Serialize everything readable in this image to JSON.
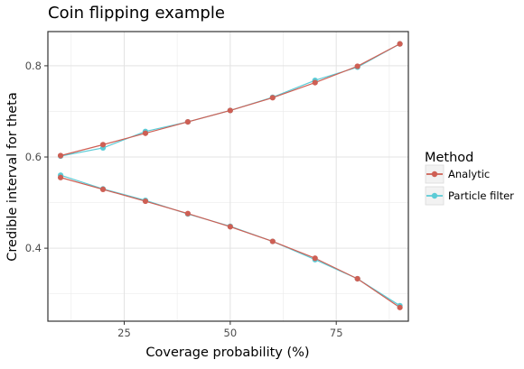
{
  "chart_data": {
    "type": "line",
    "title": "Coin flipping example",
    "xlabel": "Coverage probability (%)",
    "ylabel": "Credible interval for theta",
    "xlim": [
      7,
      92
    ],
    "ylim": [
      0.24,
      0.875
    ],
    "x_ticks": [
      25,
      50,
      75
    ],
    "y_ticks": [
      0.4,
      0.6,
      0.8
    ],
    "x_tick_labels": [
      "25",
      "50",
      "75"
    ],
    "y_tick_labels": [
      "0.4",
      "0.6",
      "0.8"
    ],
    "grid": true,
    "legend": {
      "title": "Method",
      "placement": "right",
      "items": [
        "Analytic",
        "Particle filter"
      ]
    },
    "series": [
      {
        "name": "Particle filter",
        "color": "#5BCBD6",
        "upper": {
          "x": [
            10,
            20,
            30,
            40,
            50,
            60,
            70,
            80,
            90
          ],
          "y": [
            0.602,
            0.62,
            0.656,
            0.677,
            0.702,
            0.731,
            0.768,
            0.797,
            0.848
          ]
        },
        "lower": {
          "x": [
            10,
            20,
            30,
            40,
            50,
            60,
            70,
            80,
            90
          ],
          "y": [
            0.56,
            0.53,
            0.505,
            0.475,
            0.448,
            0.415,
            0.375,
            0.333,
            0.274
          ]
        }
      },
      {
        "name": "Analytic",
        "color": "#CE5F54",
        "upper": {
          "x": [
            10,
            20,
            30,
            40,
            50,
            60,
            70,
            80,
            90
          ],
          "y": [
            0.603,
            0.627,
            0.652,
            0.677,
            0.702,
            0.73,
            0.763,
            0.799,
            0.848
          ]
        },
        "lower": {
          "x": [
            10,
            20,
            30,
            40,
            50,
            60,
            70,
            80,
            90
          ],
          "y": [
            0.555,
            0.529,
            0.503,
            0.476,
            0.447,
            0.415,
            0.378,
            0.333,
            0.27
          ]
        }
      }
    ]
  }
}
